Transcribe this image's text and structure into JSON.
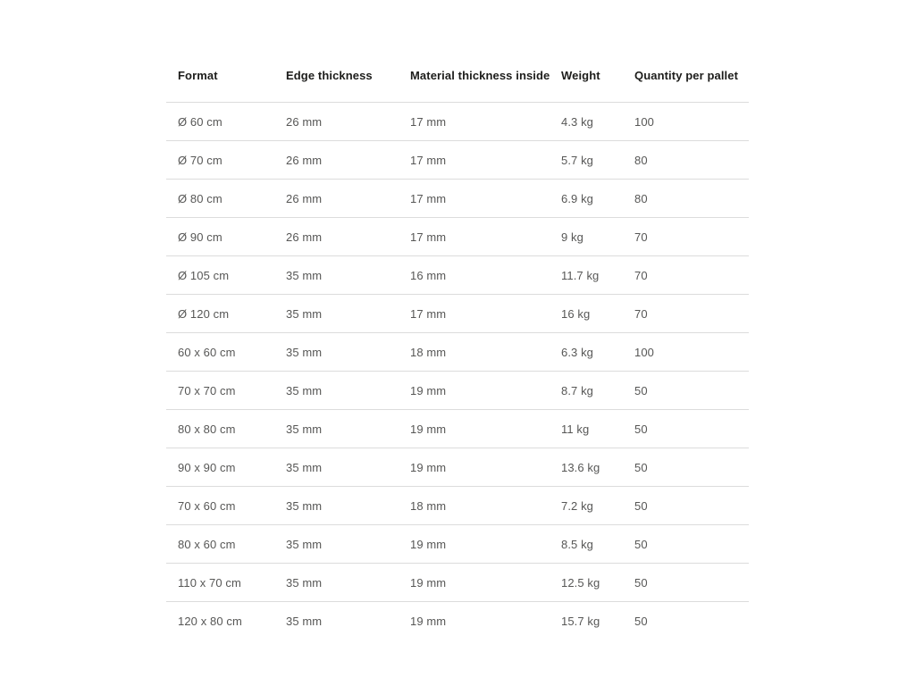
{
  "chart_data": {
    "type": "table",
    "columns": [
      "Format",
      "Edge thickness",
      "Material thickness inside",
      "Weight",
      "Quantity per pallet"
    ],
    "rows": [
      [
        "Ø 60 cm",
        "26 mm",
        "17 mm",
        "4.3 kg",
        "100"
      ],
      [
        "Ø 70 cm",
        "26 mm",
        "17 mm",
        "5.7 kg",
        "80"
      ],
      [
        "Ø 80 cm",
        "26 mm",
        "17 mm",
        "6.9 kg",
        "80"
      ],
      [
        "Ø 90 cm",
        "26 mm",
        "17 mm",
        "9 kg",
        "70"
      ],
      [
        "Ø 105 cm",
        "35 mm",
        "16 mm",
        "11.7 kg",
        "70"
      ],
      [
        "Ø 120 cm",
        "35 mm",
        "17 mm",
        "16 kg",
        "70"
      ],
      [
        "60 x 60 cm",
        "35 mm",
        "18 mm",
        "6.3 kg",
        "100"
      ],
      [
        "70 x 70 cm",
        "35 mm",
        "19 mm",
        "8.7 kg",
        "50"
      ],
      [
        "80 x 80 cm",
        "35 mm",
        "19 mm",
        "11 kg",
        "50"
      ],
      [
        "90 x 90 cm",
        "35 mm",
        "19 mm",
        "13.6 kg",
        "50"
      ],
      [
        "70 x 60 cm",
        "35 mm",
        "18 mm",
        "7.2 kg",
        "50"
      ],
      [
        "80 x 60 cm",
        "35 mm",
        "19 mm",
        "8.5 kg",
        "50"
      ],
      [
        "110 x 70 cm",
        "35 mm",
        "19 mm",
        "12.5 kg",
        "50"
      ],
      [
        "120 x 80 cm",
        "35 mm",
        "19 mm",
        "15.7 kg",
        "50"
      ]
    ]
  },
  "colors": {
    "background": "#ffffff",
    "header_text": "#1d1d1b",
    "body_text": "#575756",
    "divider": "#dcdcdc"
  }
}
